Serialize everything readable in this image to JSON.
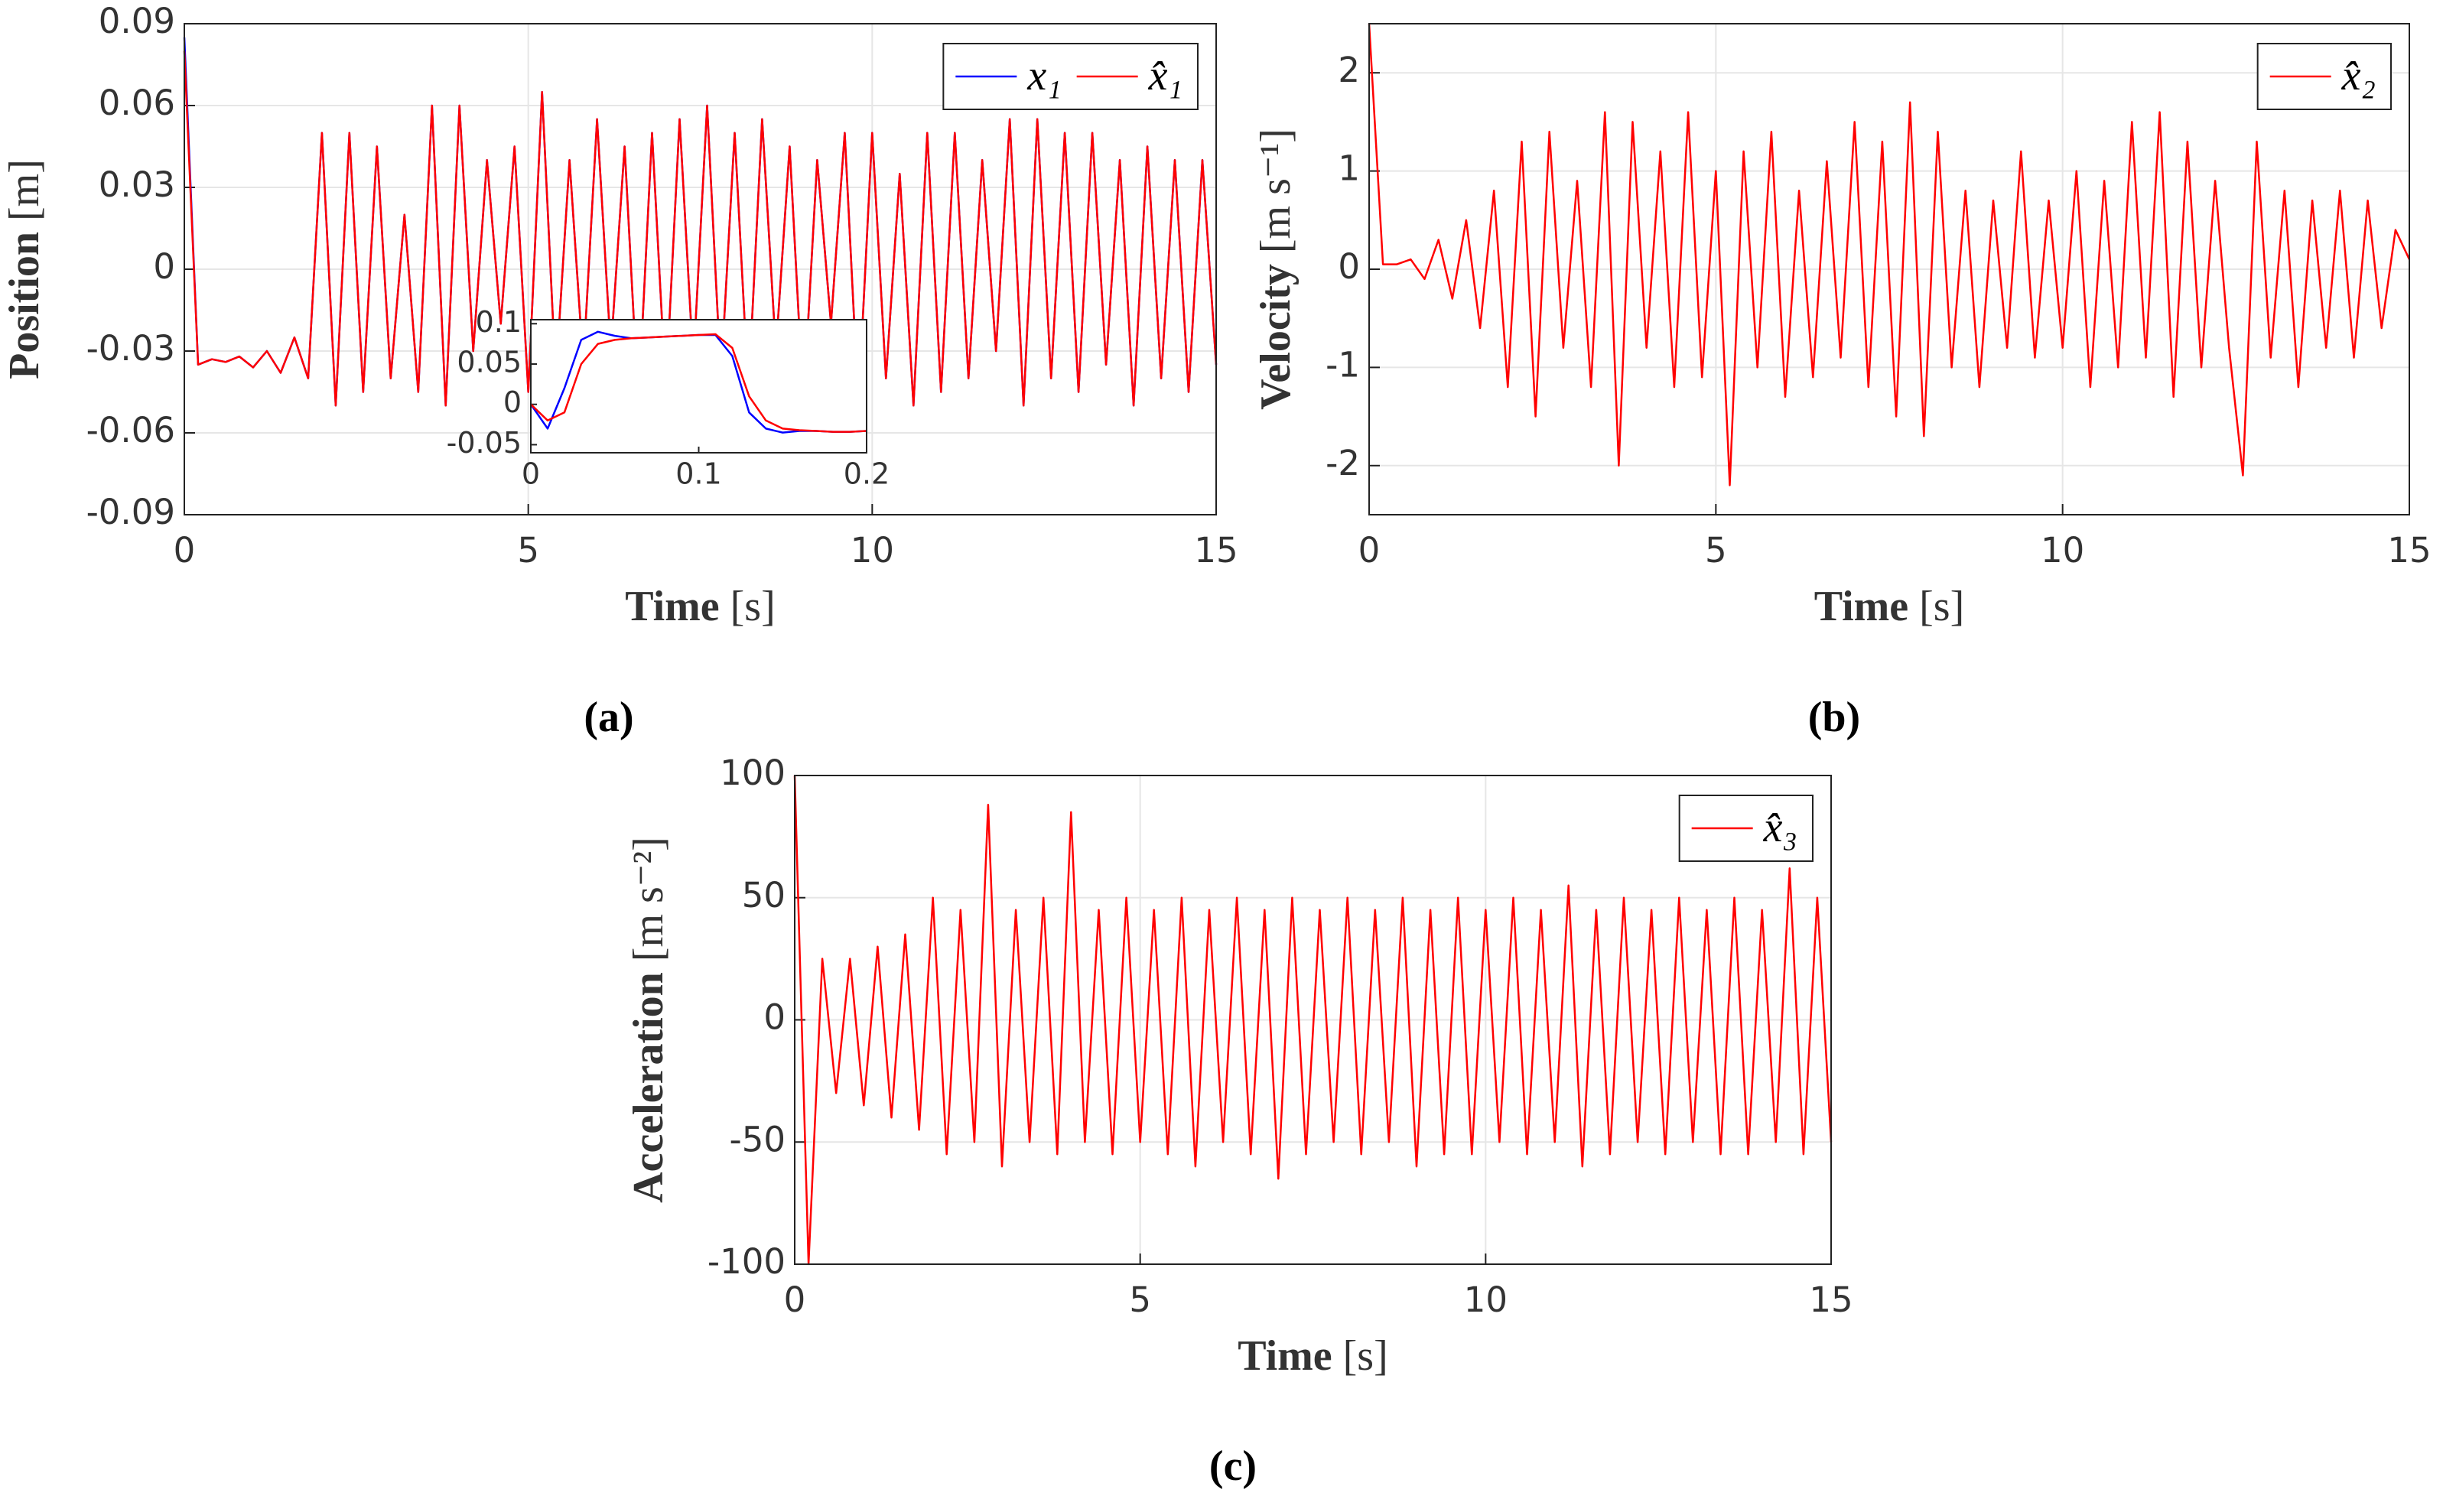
{
  "chart_data": [
    {
      "type": "line",
      "label": "(a)",
      "xlabel": "Time",
      "xlabel_unit": "[s]",
      "ylabel": "Position",
      "ylabel_unit": "[m]",
      "xlim": [
        0,
        15
      ],
      "xticks": [
        0,
        5,
        10,
        15
      ],
      "ylim": [
        -0.09,
        0.09
      ],
      "yticks": [
        -0.09,
        -0.06,
        -0.03,
        0,
        0.03,
        0.06,
        0.09
      ],
      "grid": true,
      "legend": "upper right",
      "x": [
        0,
        0.2,
        0.4,
        0.6,
        0.8,
        1,
        1.2,
        1.4,
        1.6,
        1.8,
        2,
        2.2,
        2.4,
        2.6,
        2.8,
        3,
        3.2,
        3.4,
        3.6,
        3.8,
        4,
        4.2,
        4.4,
        4.6,
        4.8,
        5,
        5.2,
        5.4,
        5.6,
        5.8,
        6,
        6.2,
        6.4,
        6.6,
        6.8,
        7,
        7.2,
        7.4,
        7.6,
        7.8,
        8,
        8.2,
        8.4,
        8.6,
        8.8,
        9,
        9.2,
        9.4,
        9.6,
        9.8,
        10,
        10.2,
        10.4,
        10.6,
        10.8,
        11,
        11.2,
        11.4,
        11.6,
        11.8,
        12,
        12.2,
        12.4,
        12.6,
        12.8,
        13,
        13.2,
        13.4,
        13.6,
        13.8,
        14,
        14.2,
        14.4,
        14.6,
        14.8,
        15
      ],
      "series": [
        {
          "name": "x₁",
          "color": "#0000ff",
          "values": [
            0.085,
            -0.035,
            -0.033,
            -0.034,
            -0.032,
            -0.036,
            -0.03,
            -0.038,
            -0.025,
            -0.04,
            0.05,
            -0.05,
            0.05,
            -0.045,
            0.045,
            -0.04,
            0.02,
            -0.045,
            0.06,
            -0.05,
            0.06,
            -0.03,
            0.04,
            -0.02,
            0.045,
            -0.045,
            0.065,
            -0.04,
            0.04,
            -0.035,
            0.055,
            -0.03,
            0.045,
            -0.05,
            0.05,
            -0.045,
            0.055,
            -0.035,
            0.06,
            -0.04,
            0.05,
            -0.045,
            0.055,
            -0.03,
            0.045,
            -0.05,
            0.04,
            -0.02,
            0.05,
            -0.05,
            0.05,
            -0.04,
            0.035,
            -0.05,
            0.05,
            -0.045,
            0.05,
            -0.04,
            0.04,
            -0.03,
            0.055,
            -0.05,
            0.055,
            -0.04,
            0.05,
            -0.045,
            0.05,
            -0.035,
            0.04,
            -0.05,
            0.045,
            -0.04,
            0.04,
            -0.045,
            0.04,
            -0.035
          ]
        },
        {
          "name": "x̂₁",
          "color": "#ff0000",
          "values": [
            0.08,
            -0.035,
            -0.033,
            -0.034,
            -0.032,
            -0.036,
            -0.03,
            -0.038,
            -0.025,
            -0.04,
            0.05,
            -0.05,
            0.05,
            -0.045,
            0.045,
            -0.04,
            0.02,
            -0.045,
            0.06,
            -0.05,
            0.06,
            -0.03,
            0.04,
            -0.02,
            0.045,
            -0.045,
            0.065,
            -0.04,
            0.04,
            -0.035,
            0.055,
            -0.03,
            0.045,
            -0.05,
            0.05,
            -0.045,
            0.055,
            -0.035,
            0.06,
            -0.04,
            0.05,
            -0.045,
            0.055,
            -0.03,
            0.045,
            -0.05,
            0.04,
            -0.02,
            0.05,
            -0.05,
            0.05,
            -0.04,
            0.035,
            -0.05,
            0.05,
            -0.045,
            0.05,
            -0.04,
            0.04,
            -0.03,
            0.055,
            -0.05,
            0.055,
            -0.04,
            0.05,
            -0.045,
            0.05,
            -0.035,
            0.04,
            -0.05,
            0.045,
            -0.04,
            0.04,
            -0.045,
            0.04,
            -0.035
          ]
        }
      ]
    },
    {
      "type": "line",
      "label": "(b)",
      "xlabel": "Time",
      "xlabel_unit": "[s]",
      "ylabel": "Velocity",
      "ylabel_unit": "[m s⁻¹]",
      "xlim": [
        0,
        15
      ],
      "xticks": [
        0,
        5,
        10,
        15
      ],
      "ylim": [
        -2.5,
        2.5
      ],
      "yticks": [
        -2,
        -1,
        0,
        1,
        2
      ],
      "grid": true,
      "legend": "upper right",
      "x": [
        0,
        0.2,
        0.4,
        0.6,
        0.8,
        1,
        1.2,
        1.4,
        1.6,
        1.8,
        2,
        2.2,
        2.4,
        2.6,
        2.8,
        3,
        3.2,
        3.4,
        3.6,
        3.8,
        4,
        4.2,
        4.4,
        4.6,
        4.8,
        5,
        5.2,
        5.4,
        5.6,
        5.8,
        6,
        6.2,
        6.4,
        6.6,
        6.8,
        7,
        7.2,
        7.4,
        7.6,
        7.8,
        8,
        8.2,
        8.4,
        8.6,
        8.8,
        9,
        9.2,
        9.4,
        9.6,
        9.8,
        10,
        10.2,
        10.4,
        10.6,
        10.8,
        11,
        11.2,
        11.4,
        11.6,
        11.8,
        12,
        12.2,
        12.4,
        12.6,
        12.8,
        13,
        13.2,
        13.4,
        13.6,
        13.8,
        14,
        14.2,
        14.4,
        14.6,
        14.8,
        15
      ],
      "series": [
        {
          "name": "x̂₂",
          "color": "#ff0000",
          "values": [
            2.5,
            0.05,
            0.05,
            0.1,
            -0.1,
            0.3,
            -0.3,
            0.5,
            -0.6,
            0.8,
            -1.2,
            1.3,
            -1.5,
            1.4,
            -0.8,
            0.9,
            -1.2,
            1.6,
            -2,
            1.5,
            -0.8,
            1.2,
            -1.2,
            1.6,
            -1.1,
            1,
            -2.2,
            1.2,
            -1,
            1.4,
            -1.3,
            0.8,
            -1.1,
            1.1,
            -0.9,
            1.5,
            -1.2,
            1.3,
            -1.5,
            1.7,
            -1.7,
            1.4,
            -1,
            0.8,
            -1.2,
            0.7,
            -0.8,
            1.2,
            -0.9,
            0.7,
            -0.8,
            1,
            -1.2,
            0.9,
            -1,
            1.5,
            -0.9,
            1.6,
            -1.3,
            1.3,
            -1,
            0.9,
            -0.8,
            -2.1,
            1.3,
            -0.9,
            0.8,
            -1.2,
            0.7,
            -0.8,
            0.8,
            -0.9,
            0.7,
            -0.6,
            0.4,
            0.1
          ]
        }
      ]
    },
    {
      "type": "line",
      "label": "(c)",
      "xlabel": "Time",
      "xlabel_unit": "[s]",
      "ylabel": "Acceleration",
      "ylabel_unit": "[m s⁻²]",
      "xlim": [
        0,
        15
      ],
      "xticks": [
        0,
        5,
        10,
        15
      ],
      "ylim": [
        -100,
        100
      ],
      "yticks": [
        -100,
        -50,
        0,
        50,
        100
      ],
      "grid": true,
      "legend": "upper right",
      "x": [
        0,
        0.2,
        0.4,
        0.6,
        0.8,
        1,
        1.2,
        1.4,
        1.6,
        1.8,
        2,
        2.2,
        2.4,
        2.6,
        2.8,
        3,
        3.2,
        3.4,
        3.6,
        3.8,
        4,
        4.2,
        4.4,
        4.6,
        4.8,
        5,
        5.2,
        5.4,
        5.6,
        5.8,
        6,
        6.2,
        6.4,
        6.6,
        6.8,
        7,
        7.2,
        7.4,
        7.6,
        7.8,
        8,
        8.2,
        8.4,
        8.6,
        8.8,
        9,
        9.2,
        9.4,
        9.6,
        9.8,
        10,
        10.2,
        10.4,
        10.6,
        10.8,
        11,
        11.2,
        11.4,
        11.6,
        11.8,
        12,
        12.2,
        12.4,
        12.6,
        12.8,
        13,
        13.2,
        13.4,
        13.6,
        13.8,
        14,
        14.2,
        14.4,
        14.6,
        14.8,
        15
      ],
      "series": [
        {
          "name": "x̂₃",
          "color": "#ff0000",
          "values": [
            100,
            -100,
            25,
            -30,
            25,
            -35,
            30,
            -40,
            35,
            -45,
            50,
            -55,
            45,
            -50,
            88,
            -60,
            45,
            -50,
            50,
            -55,
            85,
            -50,
            45,
            -55,
            50,
            -50,
            45,
            -55,
            50,
            -60,
            45,
            -50,
            50,
            -55,
            45,
            -65,
            50,
            -55,
            45,
            -50,
            50,
            -55,
            45,
            -50,
            50,
            -60,
            45,
            -55,
            50,
            -55,
            45,
            -50,
            50,
            -55,
            45,
            -50,
            55,
            -60,
            45,
            -55,
            50,
            -50,
            45,
            -55,
            50,
            -50,
            45,
            -55,
            50,
            -55,
            45,
            -50,
            62,
            -55,
            50,
            -50
          ]
        }
      ]
    },
    {
      "type": "line",
      "xlim": [
        0,
        0.2
      ],
      "xticks": [
        0,
        0.1,
        0.2
      ],
      "ylim": [
        -0.06,
        0.105
      ],
      "yticks": [
        -0.05,
        0,
        0.05,
        0.1
      ],
      "x": [
        0,
        0.01,
        0.02,
        0.03,
        0.04,
        0.05,
        0.06,
        0.07,
        0.08,
        0.09,
        0.1,
        0.11,
        0.12,
        0.13,
        0.14,
        0.15,
        0.16,
        0.17,
        0.18,
        0.19,
        0.2
      ],
      "series": [
        {
          "color": "#0000ff",
          "values": [
            0,
            -0.03,
            0.02,
            0.08,
            0.09,
            0.085,
            0.082,
            0.083,
            0.084,
            0.085,
            0.086,
            0.086,
            0.06,
            -0.01,
            -0.03,
            -0.035,
            -0.033,
            -0.033,
            -0.034,
            -0.034,
            -0.033
          ]
        },
        {
          "color": "#ff0000",
          "values": [
            0,
            -0.02,
            -0.01,
            0.05,
            0.075,
            0.08,
            0.082,
            0.083,
            0.084,
            0.085,
            0.086,
            0.087,
            0.07,
            0.01,
            -0.02,
            -0.03,
            -0.032,
            -0.033,
            -0.034,
            -0.034,
            -0.033
          ]
        }
      ]
    }
  ]
}
